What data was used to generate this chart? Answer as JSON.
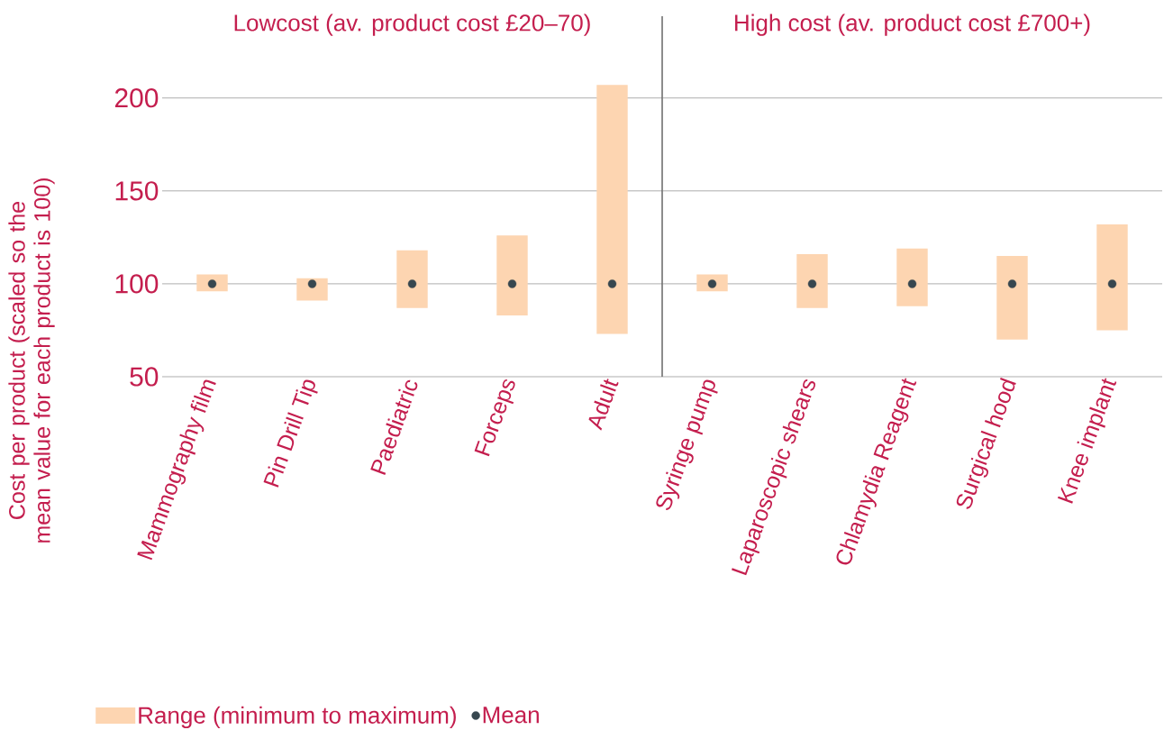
{
  "chart_data": [
    {
      "type": "bar",
      "title": "Lowcost (av. product cost £20–70)",
      "ylabel": "Cost per product (scaled so the mean value for each product is 100)",
      "categories": [
        "Mammography film",
        "Pin Drill Tip",
        "Paediatric",
        "Forceps",
        "Adult"
      ],
      "series": [
        {
          "name": "Range (minimum to maximum)",
          "color": "#fdd5b1",
          "base": [
            96,
            91,
            87,
            83,
            73
          ],
          "values": [
            9,
            12,
            31,
            43,
            134
          ]
        },
        {
          "name": "Mean",
          "type": "scatter",
          "color": "#37474f",
          "x": [
            "Mammography film",
            "Pin Drill Tip",
            "Paediatric",
            "Forceps",
            "Adult"
          ],
          "values": [
            100,
            100,
            100,
            100,
            100
          ]
        }
      ],
      "ylim": [
        50,
        244
      ],
      "yticks": [
        50,
        100,
        150,
        200
      ],
      "grid": "y",
      "legend": "bottom"
    },
    {
      "type": "bar",
      "title": "High cost (av. product cost £700+)",
      "categories": [
        "Syringe pump",
        "Laparoscopic shears",
        "Chlamydia Reagent",
        "Surgical hood",
        "Knee implant"
      ],
      "series": [
        {
          "color": "#fdd5b1",
          "base": [
            96,
            87,
            88,
            70,
            75
          ],
          "values": [
            9,
            29,
            31,
            45,
            57
          ]
        },
        {
          "type": "scatter",
          "color": "#37474f",
          "x": [
            "Syringe pump",
            "Laparoscopic shears",
            "Chlamydia Reagent",
            "Surgical hood",
            "Knee implant"
          ],
          "values": [
            100,
            100,
            100,
            100,
            100
          ]
        }
      ],
      "ylim": [
        50,
        244
      ],
      "yticks": [
        50,
        100,
        150,
        200
      ],
      "grid": "y",
      "tick_labels": "x"
    }
  ]
}
